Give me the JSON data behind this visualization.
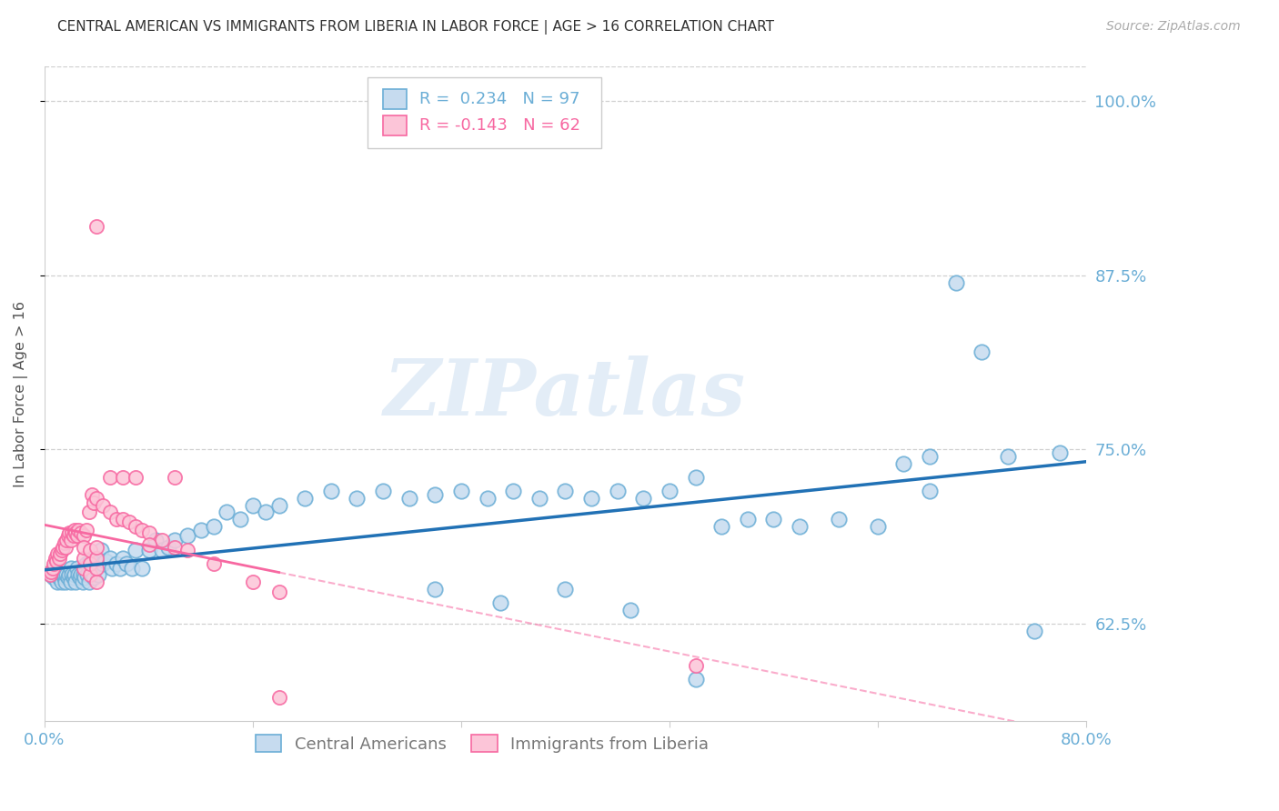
{
  "title": "CENTRAL AMERICAN VS IMMIGRANTS FROM LIBERIA IN LABOR FORCE | AGE > 16 CORRELATION CHART",
  "source": "Source: ZipAtlas.com",
  "ylabel": "In Labor Force | Age > 16",
  "xlim": [
    0.0,
    0.8
  ],
  "ylim": [
    0.555,
    1.025
  ],
  "yticks": [
    0.625,
    0.75,
    0.875,
    1.0
  ],
  "ytick_labels": [
    "62.5%",
    "75.0%",
    "87.5%",
    "100.0%"
  ],
  "xticks": [
    0.0,
    0.16,
    0.32,
    0.48,
    0.64,
    0.8
  ],
  "xtick_labels": [
    "0.0%",
    "",
    "",
    "",
    "",
    "80.0%"
  ],
  "blue_R": 0.234,
  "blue_N": 97,
  "pink_R": -0.143,
  "pink_N": 62,
  "blue_edge": "#6baed6",
  "blue_fill": "#c6dbef",
  "pink_edge": "#f768a1",
  "pink_fill": "#fcc5d8",
  "blue_line": "#2171b5",
  "pink_line": "#f768a1",
  "axis_tick_color": "#6baed6",
  "watermark": "ZIPatlas",
  "blue_x": [
    0.005,
    0.007,
    0.009,
    0.01,
    0.01,
    0.011,
    0.012,
    0.013,
    0.014,
    0.015,
    0.015,
    0.016,
    0.017,
    0.018,
    0.019,
    0.02,
    0.02,
    0.021,
    0.022,
    0.023,
    0.024,
    0.025,
    0.026,
    0.027,
    0.028,
    0.029,
    0.03,
    0.031,
    0.032,
    0.033,
    0.034,
    0.035,
    0.036,
    0.037,
    0.038,
    0.04,
    0.041,
    0.043,
    0.045,
    0.047,
    0.05,
    0.052,
    0.055,
    0.058,
    0.06,
    0.063,
    0.067,
    0.07,
    0.075,
    0.08,
    0.085,
    0.09,
    0.095,
    0.1,
    0.11,
    0.12,
    0.13,
    0.14,
    0.15,
    0.16,
    0.17,
    0.18,
    0.2,
    0.22,
    0.24,
    0.26,
    0.28,
    0.3,
    0.32,
    0.34,
    0.36,
    0.38,
    0.4,
    0.42,
    0.44,
    0.46,
    0.48,
    0.5,
    0.52,
    0.54,
    0.56,
    0.58,
    0.61,
    0.64,
    0.66,
    0.68,
    0.7,
    0.72,
    0.74,
    0.76,
    0.5,
    0.3,
    0.35,
    0.4,
    0.45,
    0.68,
    0.78
  ],
  "blue_y": [
    0.66,
    0.658,
    0.66,
    0.655,
    0.66,
    0.658,
    0.66,
    0.655,
    0.66,
    0.658,
    0.66,
    0.655,
    0.66,
    0.658,
    0.66,
    0.655,
    0.665,
    0.66,
    0.658,
    0.66,
    0.655,
    0.665,
    0.66,
    0.658,
    0.66,
    0.655,
    0.66,
    0.658,
    0.668,
    0.66,
    0.655,
    0.67,
    0.66,
    0.668,
    0.658,
    0.672,
    0.66,
    0.678,
    0.668,
    0.67,
    0.672,
    0.665,
    0.668,
    0.665,
    0.672,
    0.668,
    0.665,
    0.678,
    0.665,
    0.678,
    0.685,
    0.678,
    0.68,
    0.685,
    0.688,
    0.692,
    0.695,
    0.705,
    0.7,
    0.71,
    0.705,
    0.71,
    0.715,
    0.72,
    0.715,
    0.72,
    0.715,
    0.718,
    0.72,
    0.715,
    0.72,
    0.715,
    0.72,
    0.715,
    0.72,
    0.715,
    0.72,
    0.73,
    0.695,
    0.7,
    0.7,
    0.695,
    0.7,
    0.695,
    0.74,
    0.72,
    0.87,
    0.82,
    0.745,
    0.62,
    0.585,
    0.65,
    0.64,
    0.65,
    0.635,
    0.745,
    0.748
  ],
  "pink_x": [
    0.004,
    0.005,
    0.006,
    0.007,
    0.008,
    0.009,
    0.01,
    0.011,
    0.012,
    0.013,
    0.014,
    0.015,
    0.016,
    0.017,
    0.018,
    0.019,
    0.02,
    0.021,
    0.022,
    0.023,
    0.024,
    0.025,
    0.026,
    0.028,
    0.03,
    0.032,
    0.034,
    0.036,
    0.038,
    0.04,
    0.045,
    0.05,
    0.055,
    0.06,
    0.065,
    0.07,
    0.075,
    0.08,
    0.09,
    0.1,
    0.11,
    0.13,
    0.16,
    0.18,
    0.03,
    0.03,
    0.03,
    0.035,
    0.035,
    0.035,
    0.04,
    0.04,
    0.04,
    0.04,
    0.05,
    0.06,
    0.07,
    0.08,
    0.1,
    0.18,
    0.5,
    0.04
  ],
  "pink_y": [
    0.66,
    0.662,
    0.665,
    0.668,
    0.672,
    0.67,
    0.675,
    0.672,
    0.675,
    0.678,
    0.68,
    0.683,
    0.68,
    0.685,
    0.688,
    0.69,
    0.685,
    0.69,
    0.688,
    0.692,
    0.69,
    0.688,
    0.692,
    0.69,
    0.688,
    0.692,
    0.705,
    0.718,
    0.712,
    0.715,
    0.71,
    0.705,
    0.7,
    0.7,
    0.698,
    0.695,
    0.692,
    0.69,
    0.685,
    0.68,
    0.678,
    0.668,
    0.655,
    0.648,
    0.665,
    0.672,
    0.68,
    0.66,
    0.668,
    0.678,
    0.655,
    0.665,
    0.672,
    0.68,
    0.73,
    0.73,
    0.73,
    0.682,
    0.73,
    0.572,
    0.595,
    0.91
  ]
}
